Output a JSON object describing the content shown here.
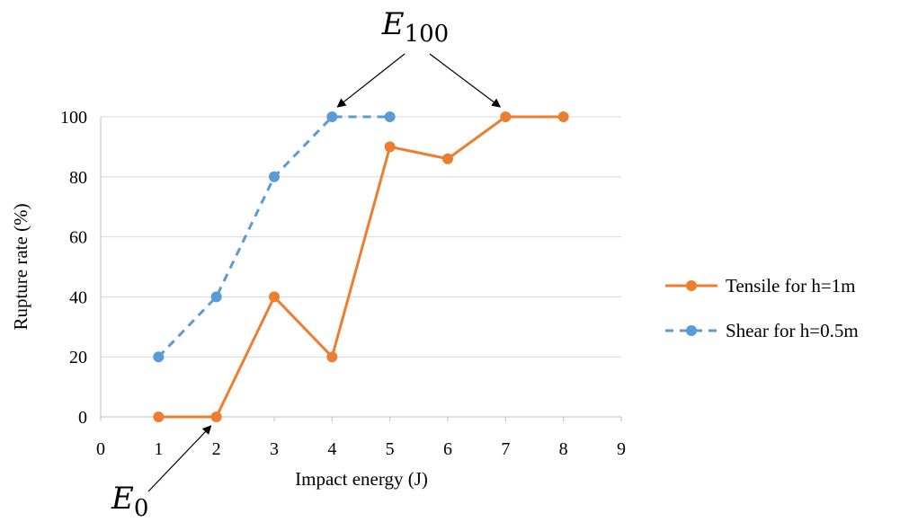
{
  "chart_data": {
    "type": "line",
    "xlabel": "Impact energy (J)",
    "ylabel": "Rupture rate (%)",
    "xlim": [
      0,
      9
    ],
    "ylim": [
      0,
      100
    ],
    "xticks": [
      "0",
      "1",
      "2",
      "3",
      "4",
      "5",
      "6",
      "7",
      "8",
      "9"
    ],
    "yticks": [
      "0",
      "20",
      "40",
      "60",
      "80",
      "100"
    ],
    "grid": "horizontal",
    "legend_position": "right",
    "series": [
      {
        "name": "Tensile for h=1m",
        "color": "#ED7D31",
        "style": "solid",
        "x": [
          1,
          2,
          3,
          4,
          5,
          6,
          7,
          8
        ],
        "y": [
          0,
          0,
          40,
          20,
          90,
          86,
          100,
          100
        ]
      },
      {
        "name": "Shear for h=0.5m",
        "color": "#5B9BD5",
        "style": "dashed",
        "x": [
          1,
          2,
          3,
          4,
          5
        ],
        "y": [
          20,
          40,
          80,
          100,
          100
        ]
      }
    ],
    "annotations": [
      {
        "base": "E",
        "sub": "100",
        "points_to": [
          [
            4,
            100
          ],
          [
            7,
            100
          ]
        ]
      },
      {
        "base": "E",
        "sub": "0",
        "points_to": [
          [
            2,
            0
          ]
        ]
      }
    ]
  }
}
